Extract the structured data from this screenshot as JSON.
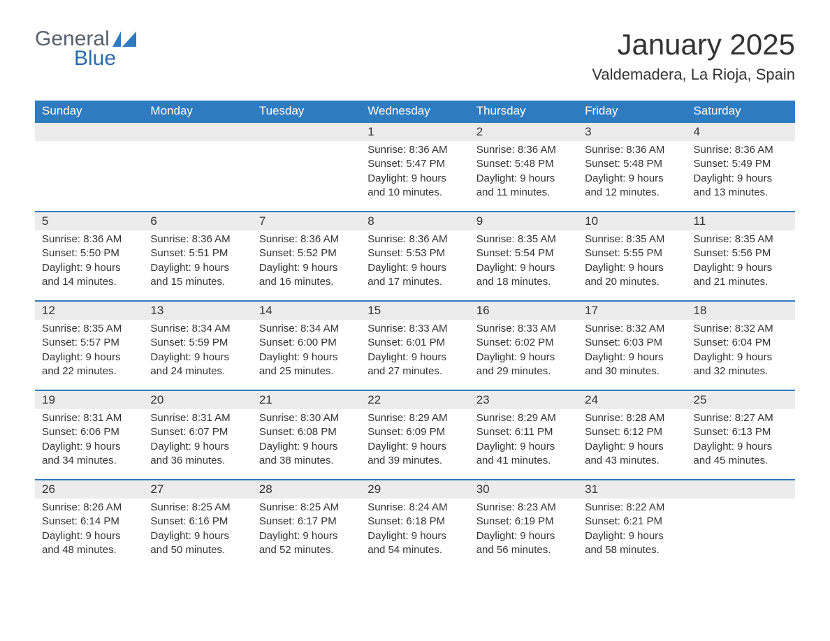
{
  "logo": {
    "text_general": "General",
    "text_blue": "Blue",
    "icon_color": "#2f7bbf"
  },
  "title": "January 2025",
  "location": "Valdemadera, La Rioja, Spain",
  "colors": {
    "header_bg": "#2f7bbf",
    "header_text": "#ffffff",
    "daybar_bg": "#ececec",
    "daybar_border": "#2f7bbf",
    "body_text": "#333333",
    "page_bg": "#ffffff"
  },
  "columns": [
    "Sunday",
    "Monday",
    "Tuesday",
    "Wednesday",
    "Thursday",
    "Friday",
    "Saturday"
  ],
  "labels": {
    "sunrise": "Sunrise:",
    "sunset": "Sunset:",
    "daylight": "Daylight:"
  },
  "weeks": [
    [
      null,
      null,
      null,
      {
        "day": "1",
        "sunrise": "8:36 AM",
        "sunset": "5:47 PM",
        "daylight": "9 hours and 10 minutes."
      },
      {
        "day": "2",
        "sunrise": "8:36 AM",
        "sunset": "5:48 PM",
        "daylight": "9 hours and 11 minutes."
      },
      {
        "day": "3",
        "sunrise": "8:36 AM",
        "sunset": "5:48 PM",
        "daylight": "9 hours and 12 minutes."
      },
      {
        "day": "4",
        "sunrise": "8:36 AM",
        "sunset": "5:49 PM",
        "daylight": "9 hours and 13 minutes."
      }
    ],
    [
      {
        "day": "5",
        "sunrise": "8:36 AM",
        "sunset": "5:50 PM",
        "daylight": "9 hours and 14 minutes."
      },
      {
        "day": "6",
        "sunrise": "8:36 AM",
        "sunset": "5:51 PM",
        "daylight": "9 hours and 15 minutes."
      },
      {
        "day": "7",
        "sunrise": "8:36 AM",
        "sunset": "5:52 PM",
        "daylight": "9 hours and 16 minutes."
      },
      {
        "day": "8",
        "sunrise": "8:36 AM",
        "sunset": "5:53 PM",
        "daylight": "9 hours and 17 minutes."
      },
      {
        "day": "9",
        "sunrise": "8:35 AM",
        "sunset": "5:54 PM",
        "daylight": "9 hours and 18 minutes."
      },
      {
        "day": "10",
        "sunrise": "8:35 AM",
        "sunset": "5:55 PM",
        "daylight": "9 hours and 20 minutes."
      },
      {
        "day": "11",
        "sunrise": "8:35 AM",
        "sunset": "5:56 PM",
        "daylight": "9 hours and 21 minutes."
      }
    ],
    [
      {
        "day": "12",
        "sunrise": "8:35 AM",
        "sunset": "5:57 PM",
        "daylight": "9 hours and 22 minutes."
      },
      {
        "day": "13",
        "sunrise": "8:34 AM",
        "sunset": "5:59 PM",
        "daylight": "9 hours and 24 minutes."
      },
      {
        "day": "14",
        "sunrise": "8:34 AM",
        "sunset": "6:00 PM",
        "daylight": "9 hours and 25 minutes."
      },
      {
        "day": "15",
        "sunrise": "8:33 AM",
        "sunset": "6:01 PM",
        "daylight": "9 hours and 27 minutes."
      },
      {
        "day": "16",
        "sunrise": "8:33 AM",
        "sunset": "6:02 PM",
        "daylight": "9 hours and 29 minutes."
      },
      {
        "day": "17",
        "sunrise": "8:32 AM",
        "sunset": "6:03 PM",
        "daylight": "9 hours and 30 minutes."
      },
      {
        "day": "18",
        "sunrise": "8:32 AM",
        "sunset": "6:04 PM",
        "daylight": "9 hours and 32 minutes."
      }
    ],
    [
      {
        "day": "19",
        "sunrise": "8:31 AM",
        "sunset": "6:06 PM",
        "daylight": "9 hours and 34 minutes."
      },
      {
        "day": "20",
        "sunrise": "8:31 AM",
        "sunset": "6:07 PM",
        "daylight": "9 hours and 36 minutes."
      },
      {
        "day": "21",
        "sunrise": "8:30 AM",
        "sunset": "6:08 PM",
        "daylight": "9 hours and 38 minutes."
      },
      {
        "day": "22",
        "sunrise": "8:29 AM",
        "sunset": "6:09 PM",
        "daylight": "9 hours and 39 minutes."
      },
      {
        "day": "23",
        "sunrise": "8:29 AM",
        "sunset": "6:11 PM",
        "daylight": "9 hours and 41 minutes."
      },
      {
        "day": "24",
        "sunrise": "8:28 AM",
        "sunset": "6:12 PM",
        "daylight": "9 hours and 43 minutes."
      },
      {
        "day": "25",
        "sunrise": "8:27 AM",
        "sunset": "6:13 PM",
        "daylight": "9 hours and 45 minutes."
      }
    ],
    [
      {
        "day": "26",
        "sunrise": "8:26 AM",
        "sunset": "6:14 PM",
        "daylight": "9 hours and 48 minutes."
      },
      {
        "day": "27",
        "sunrise": "8:25 AM",
        "sunset": "6:16 PM",
        "daylight": "9 hours and 50 minutes."
      },
      {
        "day": "28",
        "sunrise": "8:25 AM",
        "sunset": "6:17 PM",
        "daylight": "9 hours and 52 minutes."
      },
      {
        "day": "29",
        "sunrise": "8:24 AM",
        "sunset": "6:18 PM",
        "daylight": "9 hours and 54 minutes."
      },
      {
        "day": "30",
        "sunrise": "8:23 AM",
        "sunset": "6:19 PM",
        "daylight": "9 hours and 56 minutes."
      },
      {
        "day": "31",
        "sunrise": "8:22 AM",
        "sunset": "6:21 PM",
        "daylight": "9 hours and 58 minutes."
      },
      null
    ]
  ]
}
